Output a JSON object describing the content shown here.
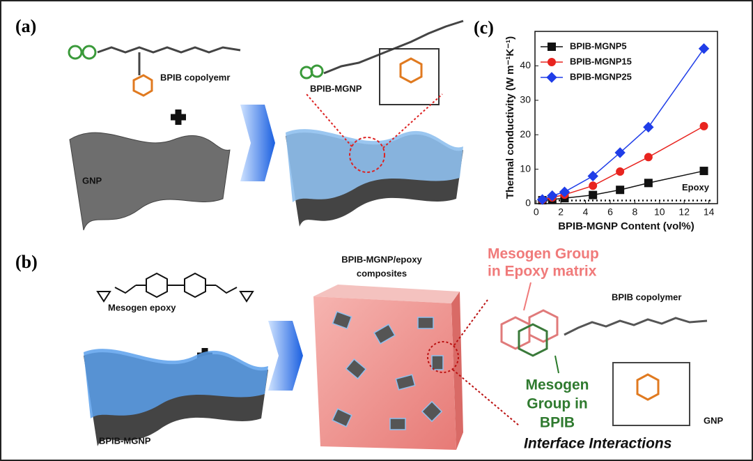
{
  "panel_a": {
    "label": "(a)",
    "copolymer": "BPIB copolyemr",
    "product": "BPIB-MGNP",
    "gnp": "GNP"
  },
  "panel_b": {
    "label": "(b)",
    "epoxy": "Mesogen epoxy",
    "sheet": "BPIB-MGNP",
    "composite": [
      "BPIB-MGNP/epoxy",
      "composites"
    ],
    "mesogen_epoxy": [
      "Mesogen Group",
      "in Epoxy matrix"
    ],
    "copolymer": "BPIB copolymer",
    "mesogen_bpib": [
      "Mesogen",
      "Group in",
      "BPIB"
    ],
    "gnp": "GNP",
    "caption": "Interface Interactions"
  },
  "chart_data": {
    "type": "line",
    "panel_label": "(c)",
    "x_label": "BPIB-MGNP Content (vol%)",
    "y_label": "Thermal conductivity (W m⁻¹K⁻¹)",
    "xlim": [
      -0.1,
      14.7
    ],
    "ylim": [
      0,
      50
    ],
    "xticks": [
      0,
      2,
      4,
      6,
      8,
      10,
      12,
      14
    ],
    "yticks": [
      0,
      10,
      20,
      30,
      40
    ],
    "legend": "upper left",
    "series": [
      {
        "name": "BPIB-MGNP5",
        "color": "#111111",
        "marker": "square",
        "x": [
          0.5,
          1.3,
          2.3,
          4.6,
          6.8,
          9.1,
          13.6
        ],
        "values": [
          1.0,
          1.2,
          1.6,
          2.5,
          4.0,
          6.0,
          9.5
        ]
      },
      {
        "name": "BPIB-MGNP15",
        "color": "#e8241f",
        "marker": "circle",
        "x": [
          0.5,
          1.3,
          2.3,
          4.6,
          6.8,
          9.1,
          13.6
        ],
        "values": [
          1.1,
          1.8,
          2.6,
          5.2,
          9.3,
          13.5,
          22.5
        ]
      },
      {
        "name": "BPIB-MGNP25",
        "color": "#1f3de8",
        "marker": "diamond",
        "x": [
          0.5,
          1.3,
          2.3,
          4.6,
          6.8,
          9.1,
          13.6
        ],
        "values": [
          1.2,
          2.3,
          3.4,
          8.0,
          14.8,
          22.2,
          45.0
        ]
      }
    ],
    "reference_line": {
      "label": "Epoxy",
      "value": 0.9
    }
  }
}
